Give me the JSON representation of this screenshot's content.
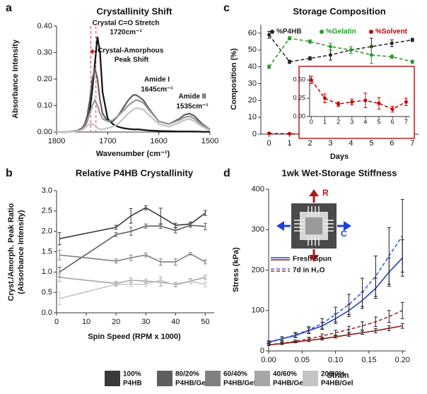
{
  "chart_data": [
    {
      "type": "line",
      "panel_label": "a",
      "title": "Crystallinity Shift",
      "x_label": "Wavenumber (cm⁻¹)",
      "y_label": "Absorbance Intensity",
      "x": [
        1800,
        1780,
        1760,
        1750,
        1745,
        1740,
        1735,
        1730,
        1725,
        1720,
        1715,
        1710,
        1700,
        1690,
        1680,
        1670,
        1660,
        1650,
        1645,
        1640,
        1630,
        1620,
        1600,
        1580,
        1560,
        1550,
        1540,
        1530,
        1515,
        1500
      ],
      "series": [
        {
          "color": "#111111",
          "values": [
            0,
            0,
            0.005,
            0.01,
            0.02,
            0.04,
            0.08,
            0.16,
            0.26,
            0.36,
            0.3,
            0.15,
            0.05,
            0.03,
            0.02,
            0.015,
            0.012,
            0.01,
            0.01,
            0.01,
            0.008,
            0.006,
            0.004,
            0.003,
            0.002,
            0.002,
            0.002,
            0.002,
            0.001,
            0.001
          ]
        },
        {
          "color": "#5e5e5e",
          "values": [
            0,
            0,
            0.005,
            0.015,
            0.03,
            0.06,
            0.12,
            0.2,
            0.24,
            0.2,
            0.12,
            0.07,
            0.04,
            0.04,
            0.06,
            0.09,
            0.12,
            0.14,
            0.14,
            0.135,
            0.12,
            0.09,
            0.04,
            0.03,
            0.05,
            0.065,
            0.07,
            0.06,
            0.03,
            0.01
          ]
        },
        {
          "color": "#999999",
          "values": [
            0,
            0,
            0.004,
            0.01,
            0.02,
            0.04,
            0.07,
            0.1,
            0.12,
            0.1,
            0.07,
            0.05,
            0.04,
            0.045,
            0.06,
            0.08,
            0.1,
            0.115,
            0.12,
            0.12,
            0.11,
            0.085,
            0.04,
            0.03,
            0.045,
            0.055,
            0.06,
            0.05,
            0.025,
            0.01
          ]
        },
        {
          "color": "#c4c4c4",
          "values": [
            0,
            0,
            0.003,
            0.008,
            0.015,
            0.025,
            0.03,
            0.03,
            0.025,
            0.015,
            0.01,
            0.01,
            0.015,
            0.02,
            0.03,
            0.05,
            0.07,
            0.085,
            0.09,
            0.09,
            0.085,
            0.065,
            0.03,
            0.02,
            0.035,
            0.045,
            0.05,
            0.04,
            0.02,
            0.005
          ]
        }
      ],
      "xlim": [
        1800,
        1500
      ],
      "xticks": [
        1800,
        1700,
        1600,
        1500
      ],
      "ylim": [
        0,
        0.4
      ],
      "yticks": [
        {
          "value": 0,
          "label": "0.00"
        },
        {
          "value": 0.1,
          "label": "0.10"
        },
        {
          "value": 0.2,
          "label": "0.20"
        },
        {
          "value": 0.3,
          "label": "0.30"
        },
        {
          "value": 0.4,
          "label": "0.40"
        }
      ],
      "reference_lines": {
        "x": [
          1733,
          1723
        ],
        "color": "#e04040"
      },
      "annotations": [
        "Crystal C=O Stretch",
        "1720cm⁻¹",
        "Crystal-Amorphous",
        "Peak Shift",
        "Amide I",
        "1645cm⁻¹",
        "Amide II",
        "1535cm⁻¹"
      ]
    },
    {
      "type": "line",
      "panel_label": "b",
      "title": "Relative P4HB Crystallinity",
      "x_label": "Spin Speed (RPM x 1000)",
      "y_label": [
        "Cryst./Amorph. Peak Ratio",
        "(Absorbance Intensity)"
      ],
      "x": [
        1,
        20,
        25,
        30,
        35,
        40,
        45,
        50
      ],
      "series": [
        {
          "color": "#3a3a3a",
          "values": [
            1.82,
            2.1,
            2.38,
            2.58,
            2.37,
            2.15,
            2.18,
            2.45
          ],
          "errors": [
            0.15,
            0.05,
            0.18,
            0.05,
            0.2,
            0.05,
            0.05,
            0.06
          ]
        },
        {
          "color": "#5e5e5e",
          "values": [
            1.0,
            1.92,
            2.0,
            2.13,
            2.13,
            2.02,
            2.15,
            2.12
          ],
          "errors": [
            0.12,
            0.05,
            0.1,
            0.05,
            0.06,
            0.06,
            0.05,
            0.08
          ]
        },
        {
          "color": "#808080",
          "values": [
            1.42,
            1.27,
            1.35,
            1.42,
            1.25,
            1.25,
            1.45,
            1.25
          ],
          "errors": [
            0.12,
            0.05,
            0.07,
            0.05,
            0.08,
            0.08,
            0.03,
            0.05
          ]
        },
        {
          "color": "#a6a6a6",
          "values": [
            0.87,
            0.72,
            0.8,
            0.78,
            0.75,
            0.7,
            0.78,
            0.87
          ],
          "errors": [
            0.1,
            0.05,
            0.06,
            0.05,
            0.1,
            0.05,
            0.06,
            0.05
          ]
        },
        {
          "color": "#c4c4c4",
          "values": [
            0.35,
            0.7,
            0.7,
            0.7,
            0.8,
            0.68,
            0.77,
            0.7
          ],
          "errors": [
            0.15,
            0.05,
            0.05,
            0.05,
            0.1,
            0.05,
            0.05,
            0.06
          ]
        }
      ],
      "xlim": [
        0,
        53
      ],
      "xticks": [
        0,
        10,
        20,
        30,
        40,
        50
      ],
      "ylim": [
        0,
        3
      ],
      "yticks": [
        {
          "value": 0,
          "label": "0.0"
        },
        {
          "value": 0.5,
          "label": "0.5"
        },
        {
          "value": 1,
          "label": "1.0"
        },
        {
          "value": 1.5,
          "label": "1.5"
        },
        {
          "value": 2,
          "label": "2.0"
        },
        {
          "value": 2.5,
          "label": "2.5"
        },
        {
          "value": 3,
          "label": "3.0"
        }
      ]
    },
    {
      "type": "line",
      "panel_label": "c",
      "title": "Storage Composition",
      "x_label": "Days",
      "y_label": "Composition (%)",
      "x": [
        0,
        1,
        2,
        3,
        4,
        5,
        6,
        7
      ],
      "series": [
        {
          "name": "%P4HB",
          "color": "#222222",
          "values": [
            59,
            43,
            45,
            47,
            50,
            52,
            54,
            56
          ],
          "errors": [
            2,
            1,
            1,
            3,
            2,
            5,
            2,
            1
          ]
        },
        {
          "name": "%Gelatin",
          "color": "#2a9a2a",
          "values": [
            40,
            57,
            55,
            52,
            50,
            47,
            46,
            43
          ],
          "errors": [
            1,
            1,
            1,
            2,
            2,
            5,
            1,
            1
          ]
        },
        {
          "name": "%Solvent",
          "color": "#c00000",
          "values": [
            0.5,
            0.25,
            0.17,
            0.2,
            0.22,
            0.18,
            0.1,
            0.2
          ],
          "errors": [
            0.05,
            0.06,
            0.03,
            0.04,
            0.1,
            0.08,
            0.04,
            0.05
          ]
        }
      ],
      "xlim": [
        -0.4,
        7.3
      ],
      "xticks": [
        0,
        1,
        2,
        3,
        4,
        5,
        6,
        7
      ],
      "ylim": [
        0,
        65
      ],
      "yticks": [
        0,
        10,
        20,
        30,
        40,
        50,
        60
      ],
      "legend": "top",
      "inset": {
        "xlim": [
          -0.8,
          7.4
        ],
        "ylim": [
          0,
          0.6
        ],
        "yticks": [
          {
            "value": 0,
            "label": "0.00"
          },
          {
            "value": 0.25,
            "label": "0.25"
          },
          {
            "value": 0.5,
            "label": "0.50"
          }
        ],
        "color": "#b22222"
      }
    },
    {
      "type": "line",
      "panel_label": "d",
      "title": "1wk Wet-Storage Stiffness",
      "x_label": "Strain",
      "y_label": "Stress (kPa)",
      "x": [
        0,
        0.02,
        0.04,
        0.06,
        0.08,
        0.1,
        0.12,
        0.14,
        0.16,
        0.18,
        0.2
      ],
      "series": [
        {
          "color": "#1f3fbf",
          "dashed": false,
          "values": [
            22,
            30,
            38,
            50,
            62,
            80,
            100,
            125,
            155,
            195,
            230
          ],
          "errors": [
            3,
            4,
            5,
            7,
            9,
            12,
            15,
            20,
            25,
            35,
            45
          ]
        },
        {
          "color": "#3c5ce8",
          "dashed": true,
          "values": [
            20,
            30,
            40,
            52,
            68,
            90,
            115,
            145,
            185,
            235,
            285
          ],
          "errors": [
            3,
            5,
            6,
            8,
            12,
            18,
            25,
            35,
            50,
            70,
            90
          ]
        },
        {
          "color": "#8b1a1a",
          "dashed": false,
          "values": [
            15,
            18,
            22,
            26,
            30,
            35,
            40,
            45,
            50,
            56,
            62
          ],
          "errors": [
            2,
            2,
            2,
            3,
            3,
            3,
            4,
            4,
            5,
            6,
            6
          ]
        },
        {
          "color": "#a52a2a",
          "dashed": true,
          "values": [
            15,
            19,
            24,
            30,
            37,
            45,
            53,
            62,
            72,
            85,
            100
          ],
          "errors": [
            2,
            3,
            3,
            4,
            5,
            6,
            8,
            10,
            12,
            15,
            20
          ]
        }
      ],
      "xlim": [
        0,
        0.205
      ],
      "xticks": [
        {
          "value": 0,
          "label": "0.00"
        },
        {
          "value": 0.05,
          "label": "0.05"
        },
        {
          "value": 0.1,
          "label": "0.10"
        },
        {
          "value": 0.15,
          "label": "0.15"
        },
        {
          "value": 0.2,
          "label": "0.20"
        }
      ],
      "ylim": [
        0,
        400
      ],
      "yticks": [
        0,
        100,
        200,
        300,
        400
      ],
      "legend": [
        {
          "label": "Fresh Spun",
          "dashed": false
        },
        {
          "label": "7d in H₂O",
          "dashed": true
        }
      ],
      "annotations": [
        "R",
        "C"
      ]
    }
  ],
  "legend": [
    {
      "lines": [
        "100%",
        "P4HB"
      ],
      "color": "#3a3a3a"
    },
    {
      "lines": [
        "80/20%",
        "P4HB/Gel"
      ],
      "color": "#5e5e5e"
    },
    {
      "lines": [
        "60/40%",
        "P4HB/Gel"
      ],
      "color": "#808080"
    },
    {
      "lines": [
        "40/60%",
        "P4HB/Gel"
      ],
      "color": "#a6a6a6"
    },
    {
      "lines": [
        "20/80%",
        "P4HB/Gel"
      ],
      "color": "#c4c4c4"
    }
  ]
}
